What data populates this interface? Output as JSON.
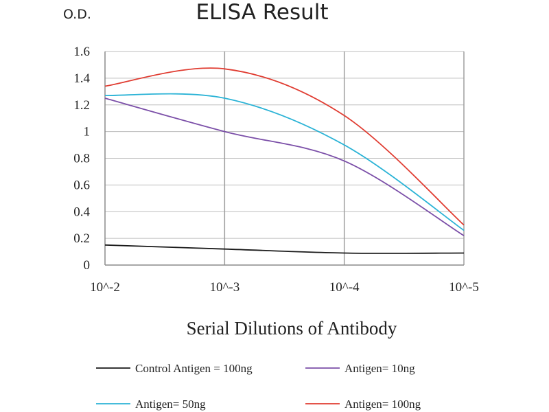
{
  "chart_data": {
    "type": "line",
    "title": "ELISA Result",
    "ylabel": "O.D.",
    "xlabel": "Serial Dilutions of Antibody",
    "x_ticks": [
      "10^-2",
      "10^-3",
      "10^-4",
      "10^-5"
    ],
    "ylim": [
      0,
      1.6
    ],
    "y_ticks": [
      "0",
      "0.2",
      "0.4",
      "0.6",
      "0.8",
      "1",
      "1.2",
      "1.4",
      "1.6"
    ],
    "grid": true,
    "legend_position": "bottom",
    "series": [
      {
        "name": "Control Antigen = 100ng",
        "color": "#1a1a1a",
        "x": [
          "10^-2",
          "10^-3",
          "10^-4",
          "10^-5"
        ],
        "values": [
          0.15,
          0.12,
          0.09,
          0.09
        ]
      },
      {
        "name": "Antigen= 10ng",
        "color": "#7b4fa8",
        "x": [
          "10^-2",
          "10^-3",
          "10^-4",
          "10^-5"
        ],
        "values": [
          1.25,
          1.0,
          0.78,
          0.22
        ]
      },
      {
        "name": "Antigen= 50ng",
        "color": "#2bb3d6",
        "x": [
          "10^-2",
          "10^-3",
          "10^-4",
          "10^-5"
        ],
        "values": [
          1.27,
          1.25,
          0.9,
          0.26
        ]
      },
      {
        "name": "Antigen= 100ng",
        "color": "#e03c31",
        "x": [
          "10^-2",
          "10^-3",
          "10^-4",
          "10^-5"
        ],
        "values": [
          1.34,
          1.47,
          1.12,
          0.3
        ]
      }
    ]
  }
}
